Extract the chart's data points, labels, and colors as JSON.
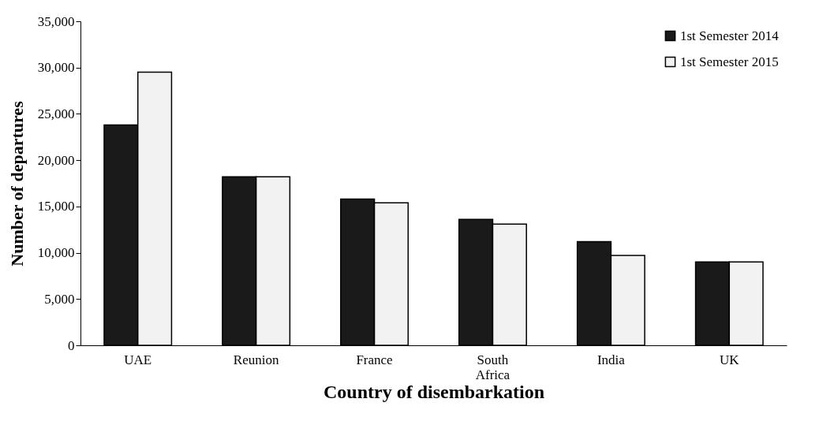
{
  "chart_data": {
    "type": "bar",
    "xlabel": "Country of disembarkation",
    "ylabel": "Number of departures",
    "categories": [
      "UAE",
      "Reunion",
      "France",
      "South Africa",
      "India",
      "UK"
    ],
    "series": [
      {
        "name": "1st Semester 2014",
        "color": "#1a1a1a",
        "values": [
          23800,
          18200,
          15800,
          13600,
          11200,
          9000
        ]
      },
      {
        "name": "1st Semester 2015",
        "color": "#f2f2f2",
        "values": [
          29500,
          18200,
          15400,
          13100,
          9700,
          9000
        ]
      }
    ],
    "ylim": [
      0,
      35000
    ],
    "yticks": [
      0,
      {
        "value": 5000,
        "label": "5,000"
      },
      {
        "value": 10000,
        "label": "10,000"
      },
      {
        "value": 15000,
        "label": "15,000"
      },
      {
        "value": 20000,
        "label": "20,000"
      },
      {
        "value": 25000,
        "label": "25,000"
      },
      {
        "value": 30000,
        "label": "30,000"
      },
      {
        "value": 35000,
        "label": "35,000"
      }
    ],
    "grid": false,
    "legend": "top right"
  }
}
